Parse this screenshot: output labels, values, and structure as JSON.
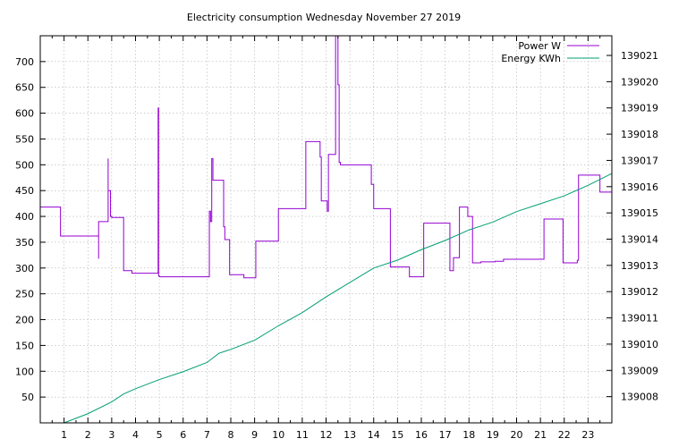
{
  "chart_data": {
    "type": "line",
    "title": "Electricity consumption Wednesday November 27 2019",
    "xlabel": "",
    "ylabel": "",
    "y2label": "",
    "grid": true,
    "legend_position": "top-right",
    "xlim": [
      0,
      24
    ],
    "ylim": [
      0,
      750
    ],
    "y2lim": [
      139007,
      139021.75
    ],
    "x_ticks": [
      1,
      2,
      3,
      4,
      5,
      6,
      7,
      8,
      9,
      10,
      11,
      12,
      13,
      14,
      15,
      16,
      17,
      18,
      19,
      20,
      21,
      22,
      23
    ],
    "y_ticks": [
      50,
      100,
      150,
      200,
      250,
      300,
      350,
      400,
      450,
      500,
      550,
      600,
      650,
      700
    ],
    "y2_ticks": [
      139008,
      139009,
      139010,
      139011,
      139012,
      139013,
      139014,
      139015,
      139016,
      139017,
      139018,
      139019,
      139020,
      139021
    ],
    "series": [
      {
        "name": "Power W",
        "axis": "y1",
        "color": "#9400d3",
        "step": true,
        "x": [
          0,
          0.85,
          2.45,
          2.45,
          2.85,
          2.85,
          2.95,
          3.0,
          3.5,
          3.85,
          4.95,
          4.97,
          5.0,
          7.1,
          7.15,
          7.2,
          7.25,
          7.7,
          7.75,
          7.95,
          8.55,
          9.05,
          9.95,
          10.0,
          11.1,
          11.15,
          11.75,
          11.8,
          12.05,
          12.1,
          12.4,
          12.5,
          12.55,
          12.6,
          12.95,
          13.9,
          14.0,
          14.7,
          15.5,
          16.1,
          17.2,
          17.35,
          17.6,
          17.95,
          18.15,
          18.5,
          19.1,
          19.45,
          21.15,
          21.95,
          22.55,
          22.6,
          23.5,
          24.0
        ],
        "values": [
          418,
          362,
          318,
          390,
          512,
          450,
          400,
          398,
          295,
          290,
          610,
          285,
          283,
          410,
          390,
          512,
          470,
          380,
          355,
          287,
          281,
          352,
          352,
          415,
          415,
          545,
          515,
          430,
          410,
          520,
          750,
          655,
          505,
          500,
          500,
          462,
          415,
          302,
          283,
          387,
          295,
          320,
          418,
          400,
          310,
          312,
          313,
          317,
          395,
          310,
          315,
          480,
          447,
          450
        ]
      },
      {
        "name": "Energy KWh",
        "axis": "y2",
        "color": "#009e73",
        "step": false,
        "x": [
          1.0,
          2.0,
          3.0,
          3.5,
          4.0,
          5.0,
          6.0,
          7.0,
          7.5,
          8.0,
          9.0,
          10.0,
          11.0,
          12.0,
          13.0,
          14.0,
          15.0,
          16.0,
          17.0,
          18.0,
          19.0,
          20.0,
          21.0,
          22.0,
          23.0,
          24.0
        ],
        "values": [
          139007.0,
          139007.35,
          139007.8,
          139008.1,
          139008.3,
          139008.65,
          139008.95,
          139009.3,
          139009.65,
          139009.8,
          139010.15,
          139010.7,
          139011.2,
          139011.8,
          139012.35,
          139012.9,
          139013.2,
          139013.6,
          139013.95,
          139014.35,
          139014.65,
          139015.05,
          139015.35,
          139015.65,
          139016.05,
          139016.5
        ]
      }
    ]
  }
}
